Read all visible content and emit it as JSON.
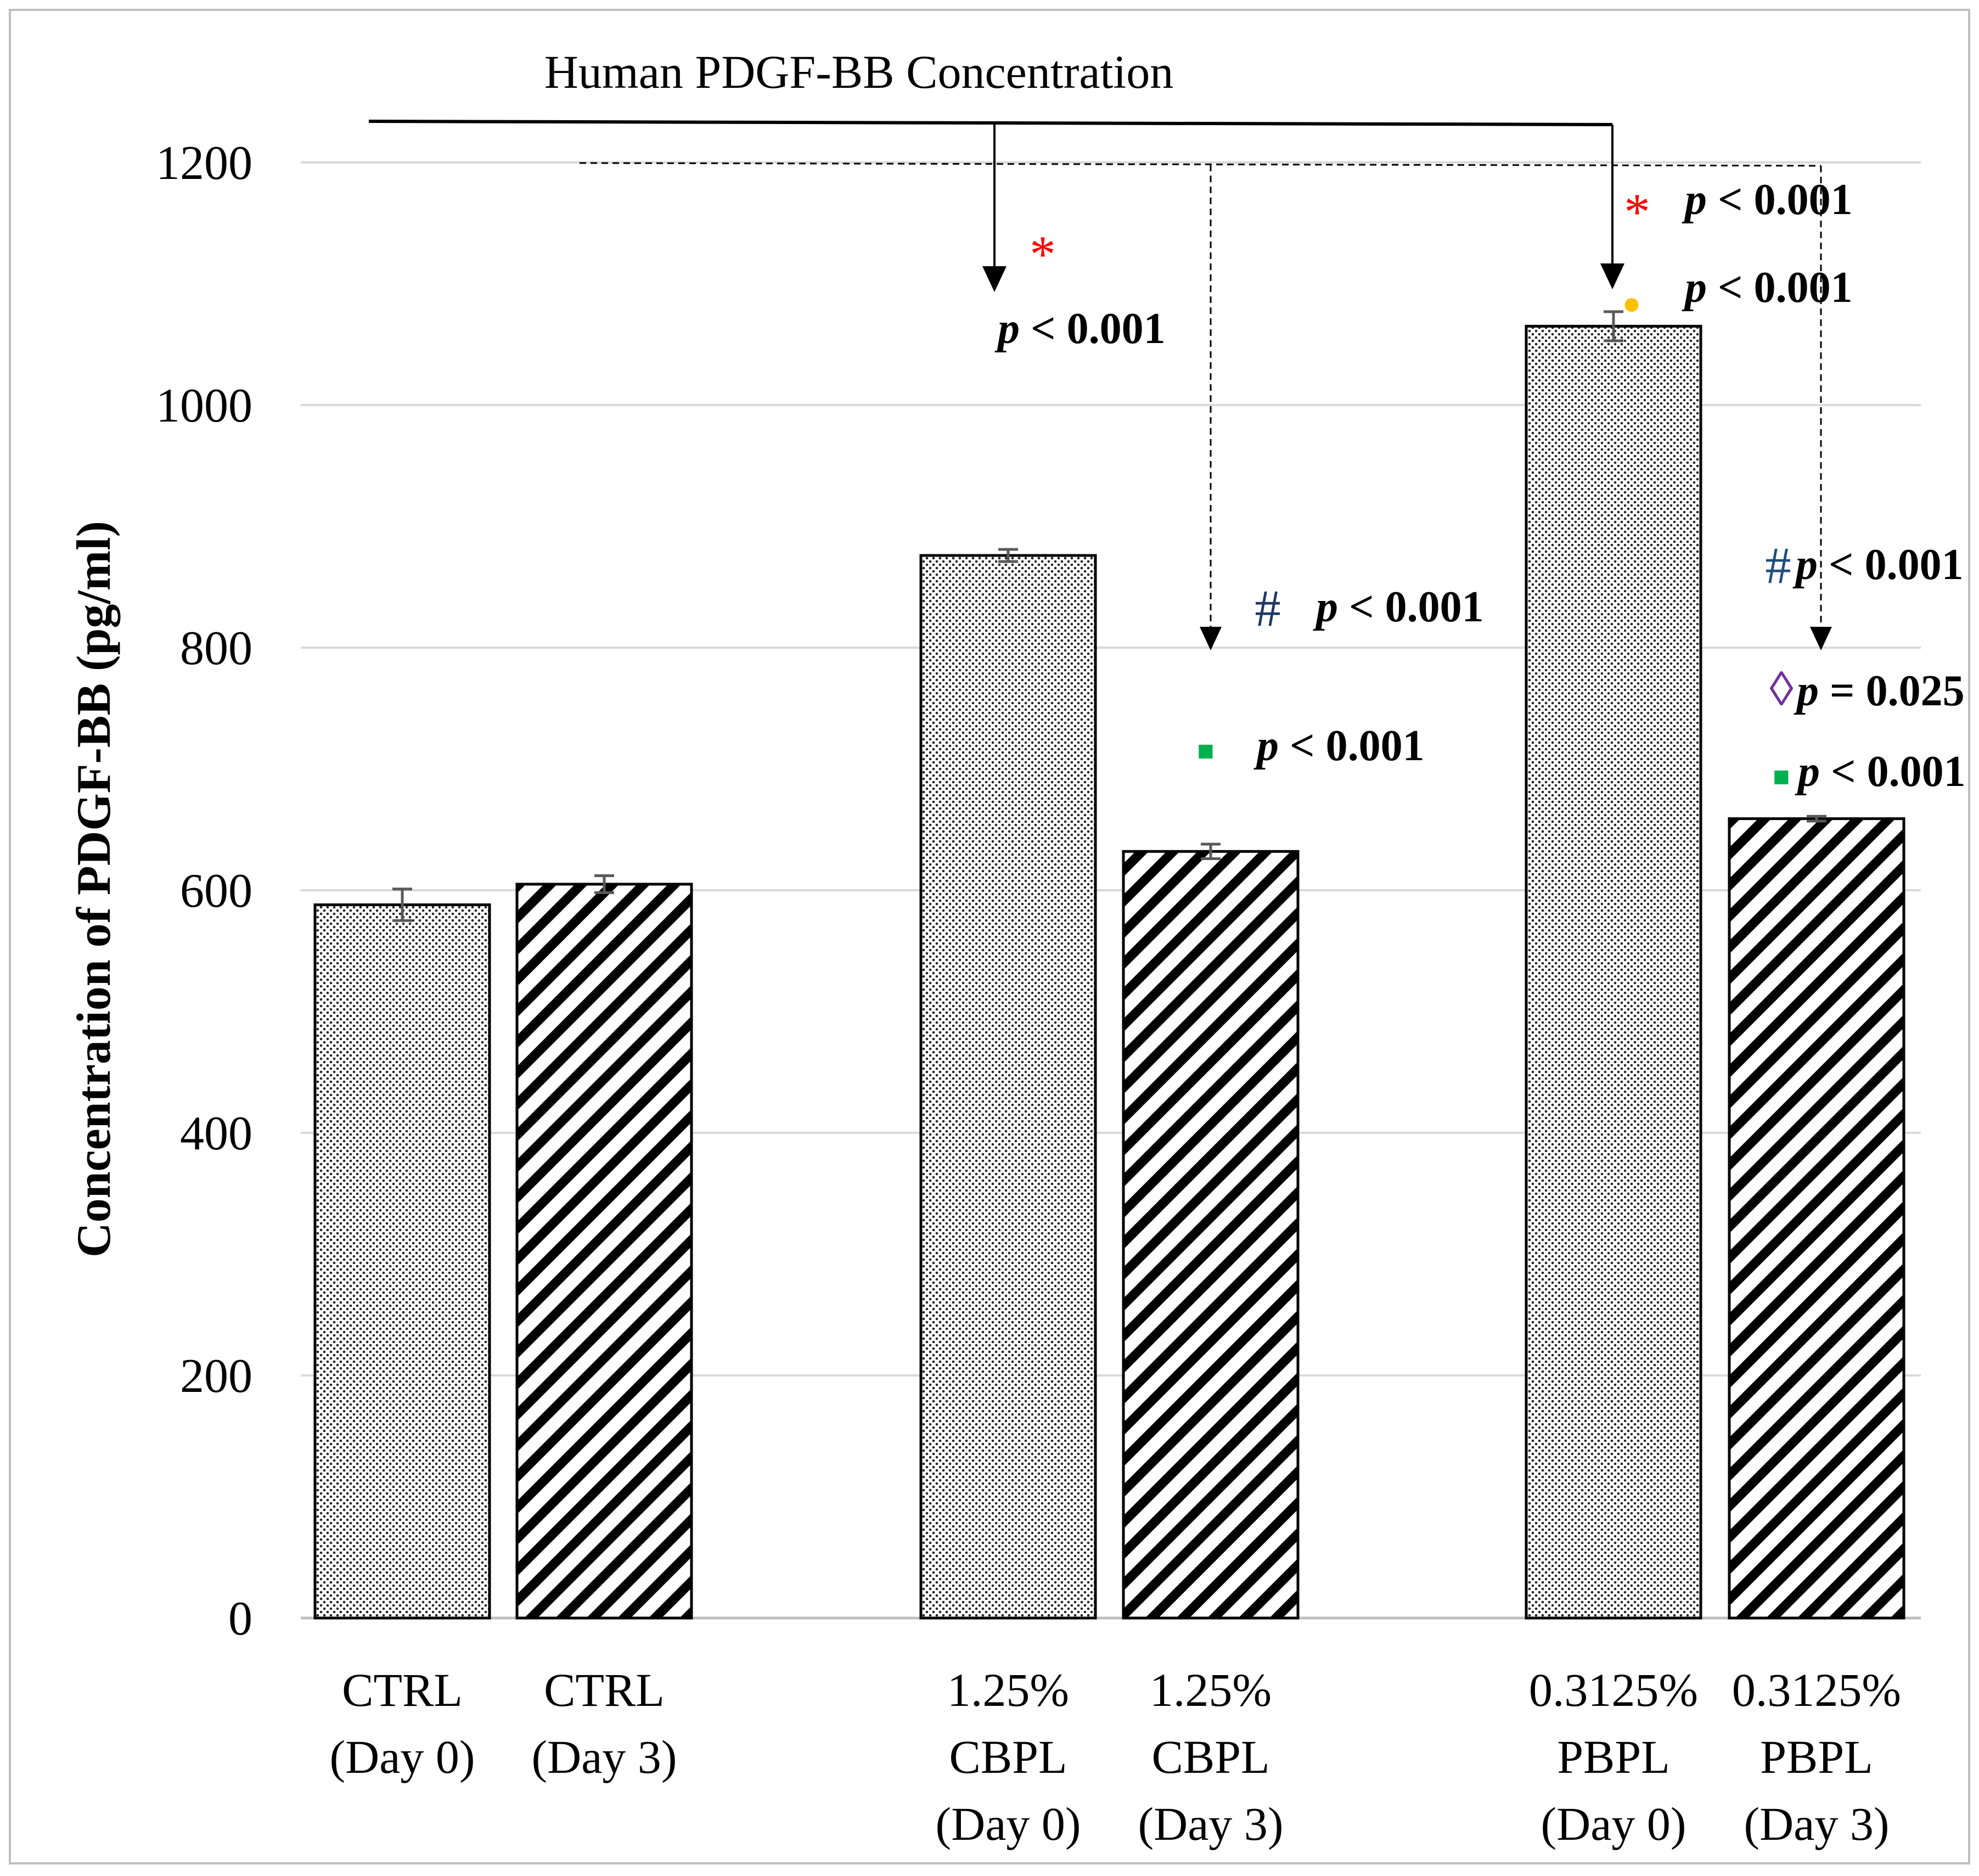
{
  "chart_data": {
    "type": "bar",
    "title": "Human PDGF-BB Concentration",
    "xlabel": "",
    "ylabel": "Concentration of PDGF-BB (pg/ml)",
    "ylim": [
      0,
      1200
    ],
    "yticks": [
      0,
      200,
      400,
      600,
      800,
      1000,
      1200
    ],
    "grid": true,
    "categories": [
      [
        "CTRL",
        "(Day 0)"
      ],
      [
        "CTRL",
        "(Day 3)"
      ],
      [
        "1.25%",
        "CBPL",
        "(Day 0)"
      ],
      [
        "1.25%",
        "CBPL",
        "(Day 3)"
      ],
      [
        "0.3125%",
        "PBPL",
        "(Day 0)"
      ],
      [
        "0.3125%",
        "PBPL",
        "(Day 3)"
      ]
    ],
    "values": [
      588,
      605,
      876,
      632,
      1065,
      659
    ],
    "errors": [
      13,
      7,
      5,
      6,
      12,
      2
    ],
    "patterns": [
      "dots",
      "stripes",
      "dots",
      "stripes",
      "dots",
      "stripes"
    ],
    "significance": [
      {
        "marker": "*",
        "color": "#ff0000",
        "p_italic": "p",
        "p_rest": " < 0.001"
      },
      {
        "marker": "*",
        "color": "#ff0000",
        "p_italic": "p",
        "p_rest": " < 0.001"
      },
      {
        "marker": "●",
        "color": "#ffc000",
        "p_italic": "p",
        "p_rest": " < 0.001"
      },
      {
        "marker": "#",
        "color": "#1f3864",
        "p_italic": "p",
        "p_rest": " < 0.001"
      },
      {
        "marker": "■",
        "color": "#00b050",
        "p_italic": "p",
        "p_rest": " < 0.001"
      },
      {
        "marker": "#",
        "color": "#1f4e79",
        "p_italic": "p",
        "p_rest": " < 0.001"
      },
      {
        "marker": "◊",
        "color": "#7030a0",
        "p_italic": "p",
        "p_rest": " = 0.025"
      },
      {
        "marker": "■",
        "color": "#00b050",
        "p_italic": "p",
        "p_rest": " < 0.001"
      }
    ]
  }
}
